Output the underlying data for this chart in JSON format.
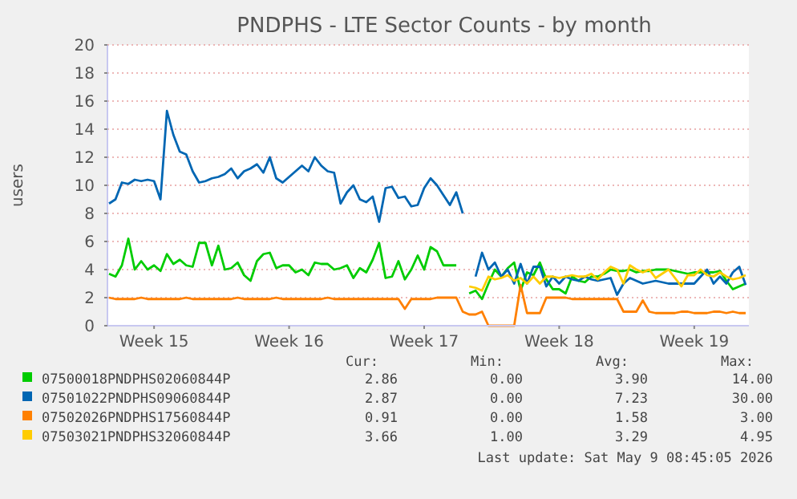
{
  "chart_data": {
    "type": "line",
    "title": "PNDPHS - LTE Sector Counts - by month",
    "ylabel": "users",
    "categories": [
      null,
      null,
      null,
      null,
      null,
      null,
      null,
      "Week 15",
      null,
      null,
      null,
      null,
      null,
      null,
      null,
      null,
      null,
      null,
      null,
      null,
      null,
      null,
      null,
      null,
      null,
      null,
      null,
      null,
      "Week 16",
      null,
      null,
      null,
      null,
      null,
      null,
      null,
      null,
      null,
      null,
      null,
      null,
      null,
      null,
      null,
      null,
      null,
      null,
      null,
      null,
      "Week 17",
      null,
      null,
      null,
      null,
      null,
      null,
      null,
      null,
      null,
      null,
      null,
      null,
      null,
      null,
      null,
      null,
      null,
      null,
      null,
      null,
      "Week 18",
      null,
      null,
      null,
      null,
      null,
      null,
      null,
      null,
      null,
      null,
      null,
      null,
      null,
      null,
      null,
      null,
      null,
      null,
      null,
      null,
      "Week 19",
      null,
      null,
      null,
      null,
      null,
      null,
      null,
      null
    ],
    "ylim": [
      0,
      20
    ],
    "yticks": [
      0,
      2,
      4,
      6,
      8,
      10,
      12,
      14,
      16,
      18,
      20
    ],
    "grid": "y",
    "legend": "bottom",
    "series": [
      {
        "name": "07500018PNDPHS02060844P",
        "color": "#00cc00",
        "values": [
          3.7,
          3.5,
          4.3,
          6.2,
          4.0,
          4.6,
          4.0,
          4.3,
          3.9,
          5.1,
          4.4,
          4.7,
          4.3,
          4.2,
          5.9,
          5.9,
          4.3,
          5.7,
          4.0,
          4.1,
          4.5,
          3.6,
          3.2,
          4.6,
          5.1,
          5.2,
          4.1,
          4.3,
          4.3,
          3.8,
          4.0,
          3.6,
          4.5,
          4.4,
          4.4,
          4.0,
          4.1,
          4.3,
          3.4,
          4.1,
          3.8,
          4.7,
          5.9,
          3.4,
          3.5,
          4.6,
          3.3,
          4.0,
          5.0,
          4.0,
          5.6,
          5.3,
          4.3,
          4.3,
          4.3,
          null,
          2.3,
          2.5,
          1.9,
          3.0,
          4.0,
          3.5,
          4.1,
          4.5,
          2.5,
          3.8,
          3.6,
          4.5,
          3.3,
          2.6,
          2.6,
          2.3,
          3.5,
          3.2,
          3.1,
          3.5,
          3.5,
          3.7,
          4.0,
          3.9,
          3.9,
          4.0,
          3.8,
          3.9,
          3.9,
          4.0,
          4.0,
          4.0,
          3.9,
          3.8,
          3.7,
          3.8,
          3.8,
          3.8,
          3.8,
          3.9,
          3.2,
          2.6,
          2.8,
          3.0
        ]
      },
      {
        "name": "07501022PNDPHS09060844P",
        "color": "#0066b3",
        "values": [
          8.7,
          9.0,
          10.2,
          10.1,
          10.4,
          10.3,
          10.4,
          10.3,
          9.0,
          15.3,
          13.6,
          12.4,
          12.2,
          11.0,
          10.2,
          10.3,
          10.5,
          10.6,
          10.8,
          11.2,
          10.5,
          11.0,
          11.2,
          11.5,
          10.9,
          12.0,
          10.5,
          10.2,
          10.6,
          11.0,
          11.4,
          11.0,
          12.0,
          11.4,
          11.0,
          10.9,
          8.7,
          9.5,
          10.0,
          9.0,
          8.8,
          9.2,
          7.4,
          9.8,
          9.9,
          9.1,
          9.2,
          8.5,
          8.6,
          9.8,
          10.5,
          10.0,
          9.3,
          8.6,
          9.5,
          8.0,
          null,
          3.5,
          5.2,
          4.0,
          4.5,
          3.5,
          4.0,
          3.0,
          4.4,
          3.0,
          4.2,
          4.2,
          2.8,
          3.5,
          3.0,
          3.5,
          3.3,
          3.2,
          3.5,
          3.3,
          3.2,
          3.3,
          3.4,
          2.2,
          3.0,
          3.4,
          3.2,
          3.0,
          3.1,
          3.2,
          3.1,
          3.0,
          3.0,
          3.0,
          3.0,
          3.0,
          3.5,
          4.0,
          3.0,
          3.5,
          3.0,
          3.8,
          4.2,
          2.9
        ]
      },
      {
        "name": "07502026PNDPHS17560844P",
        "color": "#ff8000",
        "values": [
          2.0,
          1.9,
          1.9,
          1.9,
          1.9,
          2.0,
          1.9,
          1.9,
          1.9,
          1.9,
          1.9,
          1.9,
          2.0,
          1.9,
          1.9,
          1.9,
          1.9,
          1.9,
          1.9,
          1.9,
          2.0,
          1.9,
          1.9,
          1.9,
          1.9,
          1.9,
          2.0,
          1.9,
          1.9,
          1.9,
          1.9,
          1.9,
          1.9,
          1.9,
          2.0,
          1.9,
          1.9,
          1.9,
          1.9,
          1.9,
          1.9,
          1.9,
          1.9,
          1.9,
          1.9,
          1.9,
          1.2,
          1.9,
          1.9,
          1.9,
          1.9,
          2.0,
          2.0,
          2.0,
          2.0,
          1.0,
          0.8,
          0.8,
          1.0,
          0.0,
          0.0,
          0.0,
          0.0,
          0.0,
          2.9,
          0.9,
          0.9,
          0.9,
          2.0,
          2.0,
          2.0,
          2.0,
          1.9,
          1.9,
          1.9,
          1.9,
          1.9,
          1.9,
          1.9,
          1.9,
          1.0,
          1.0,
          1.0,
          1.8,
          1.0,
          0.9,
          0.9,
          0.9,
          0.9,
          1.0,
          1.0,
          0.9,
          0.9,
          0.9,
          1.0,
          1.0,
          0.9,
          1.0,
          0.9,
          0.9
        ]
      },
      {
        "name": "07503021PNDPHS32060844P",
        "color": "#ffcc00",
        "values": [
          null,
          null,
          null,
          null,
          null,
          null,
          null,
          null,
          null,
          null,
          null,
          null,
          null,
          null,
          null,
          null,
          null,
          null,
          null,
          null,
          null,
          null,
          null,
          null,
          null,
          null,
          null,
          null,
          null,
          null,
          null,
          null,
          null,
          null,
          null,
          null,
          null,
          null,
          null,
          null,
          null,
          null,
          null,
          null,
          null,
          null,
          null,
          null,
          null,
          null,
          null,
          null,
          null,
          null,
          null,
          null,
          2.8,
          2.7,
          2.5,
          3.5,
          3.3,
          3.4,
          3.6,
          3.2,
          3.4,
          3.0,
          3.5,
          3.0,
          3.5,
          3.5,
          3.4,
          3.5,
          3.6,
          3.5,
          3.5,
          3.7,
          3.3,
          3.8,
          4.2,
          4.0,
          3.0,
          4.3,
          4.0,
          3.8,
          4.0,
          3.4,
          3.7,
          4.0,
          3.4,
          2.8,
          3.6,
          3.6,
          4.0,
          3.6,
          3.5,
          3.8,
          3.5,
          3.3,
          3.4,
          3.6
        ]
      }
    ],
    "annotations": [
      "Cur:",
      "Min:",
      "Avg:",
      "Max:",
      "2.86",
      "0.00",
      "3.90",
      "14.00",
      "2.87",
      "0.00",
      "7.23",
      "30.00",
      "0.91",
      "0.00",
      "1.58",
      "3.00",
      "3.66",
      "1.00",
      "3.29",
      "4.95",
      "Last update: Sat May  9 08:45:05 2026"
    ]
  }
}
